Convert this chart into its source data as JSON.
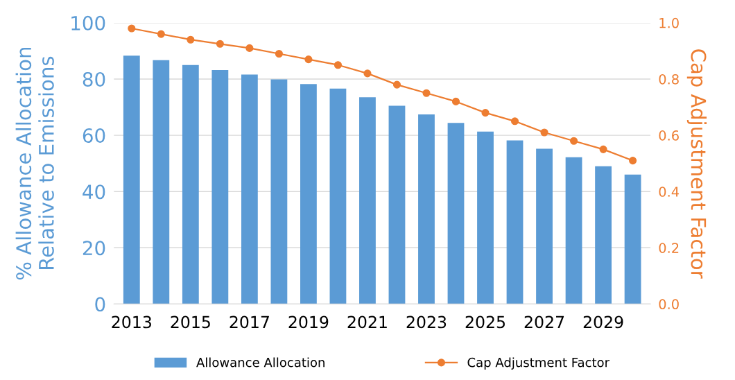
{
  "chart_data": {
    "type": "bar",
    "categories": [
      "2013",
      null,
      "2015",
      null,
      "2017",
      null,
      "2019",
      null,
      "2021",
      null,
      "2023",
      null,
      "2025",
      null,
      "2027",
      null,
      "2029",
      null
    ],
    "ylabel": "% Allowance Allocation\nRelative to Emissions",
    "y2label": "Cap Adjustment Factor",
    "ylim": [
      0,
      100
    ],
    "yticks": [
      0,
      20,
      40,
      60,
      80,
      100
    ],
    "y2lim": [
      0,
      1
    ],
    "y2ticks": [
      {
        "value": 0,
        "label": "0.0"
      },
      {
        "value": 0.2,
        "label": "0.2"
      },
      {
        "value": 0.4,
        "label": "0.4"
      },
      {
        "value": 0.6,
        "label": "0.6"
      },
      {
        "value": 0.8,
        "label": "0.8"
      },
      {
        "value": 1,
        "label": "1.0"
      }
    ],
    "grid": "y",
    "legend": "bottom",
    "series": [
      {
        "name": "Allowance Allocation",
        "color": "#5b9bd5",
        "values": [
          88.3,
          86.7,
          85.0,
          83.2,
          81.6,
          79.9,
          78.2,
          76.6,
          73.5,
          70.5,
          67.4,
          64.4,
          61.3,
          58.2,
          55.2,
          52.2,
          49.0,
          46.0
        ]
      },
      {
        "name": "Cap Adjustment Factor",
        "type": "line",
        "axis": "y2",
        "color": "#ed7d31",
        "marker": "circle",
        "values": [
          0.98,
          0.96,
          0.94,
          0.925,
          0.91,
          0.89,
          0.87,
          0.85,
          0.82,
          0.78,
          0.75,
          0.72,
          0.68,
          0.65,
          0.61,
          0.58,
          0.55,
          0.51
        ]
      }
    ]
  }
}
